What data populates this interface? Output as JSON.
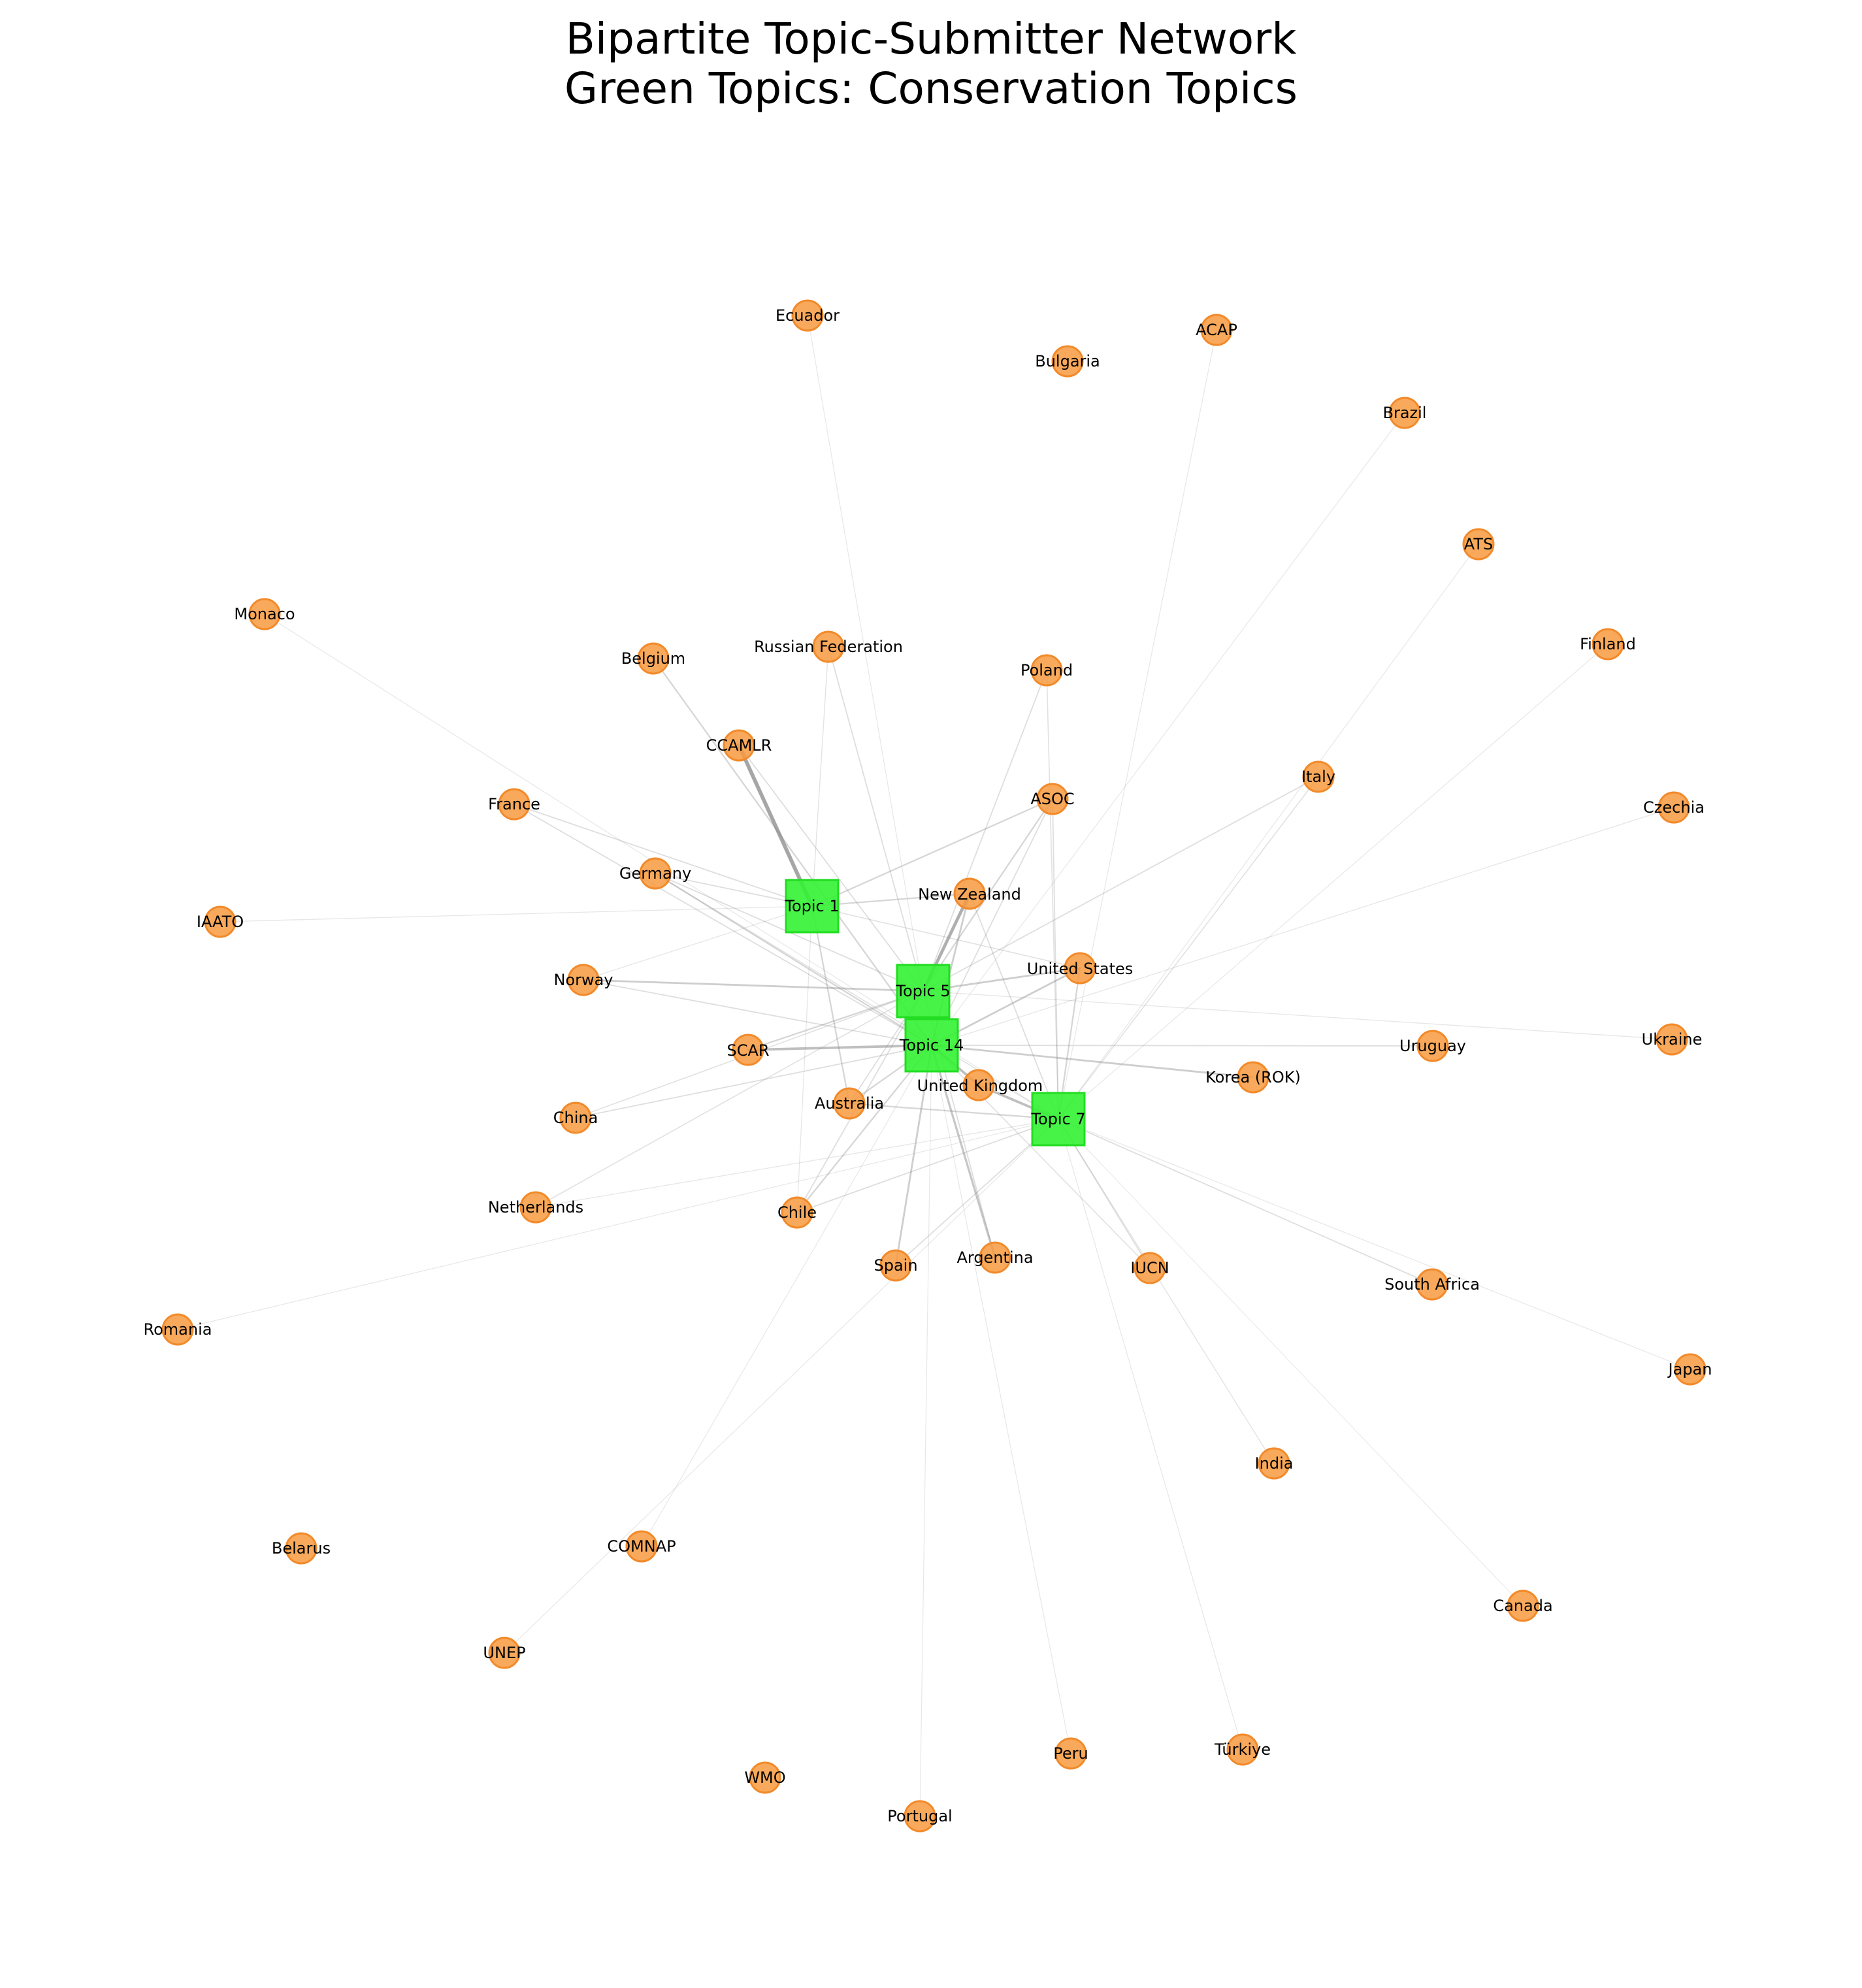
{
  "title": {
    "line1": "Bipartite Topic-Submitter Network",
    "line2": "Green Topics: Conservation Topics"
  },
  "colors": {
    "topic_node": "#33f233",
    "submitter_node": "#f79a3e",
    "edge": "#888888",
    "background": "#ffffff"
  },
  "topics": [
    {
      "id": "Topic 1",
      "label": "Topic 1"
    },
    {
      "id": "Topic 5",
      "label": "Topic 5"
    },
    {
      "id": "Topic 14",
      "label": "Topic 14"
    },
    {
      "id": "Topic 7",
      "label": "Topic 7"
    }
  ],
  "submitters": [
    {
      "id": "Ecuador",
      "label": "Ecuador"
    },
    {
      "id": "ACAP",
      "label": "ACAP"
    },
    {
      "id": "Bulgaria",
      "label": "Bulgaria"
    },
    {
      "id": "Brazil",
      "label": "Brazil"
    },
    {
      "id": "ATS",
      "label": "ATS"
    },
    {
      "id": "Monaco",
      "label": "Monaco"
    },
    {
      "id": "Finland",
      "label": "Finland"
    },
    {
      "id": "Belgium",
      "label": "Belgium"
    },
    {
      "id": "Russian Federation",
      "label": "Russian Federation"
    },
    {
      "id": "Poland",
      "label": "Poland"
    },
    {
      "id": "CCAMLR",
      "label": "CCAMLR"
    },
    {
      "id": "Italy",
      "label": "Italy"
    },
    {
      "id": "ASOC",
      "label": "ASOC"
    },
    {
      "id": "France",
      "label": "France"
    },
    {
      "id": "Czechia",
      "label": "Czechia"
    },
    {
      "id": "Germany",
      "label": "Germany"
    },
    {
      "id": "New Zealand",
      "label": "New Zealand"
    },
    {
      "id": "IAATO",
      "label": "IAATO"
    },
    {
      "id": "United States",
      "label": "United States"
    },
    {
      "id": "Norway",
      "label": "Norway"
    },
    {
      "id": "Uruguay",
      "label": "Uruguay"
    },
    {
      "id": "Ukraine",
      "label": "Ukraine"
    },
    {
      "id": "SCAR",
      "label": "SCAR"
    },
    {
      "id": "Korea (ROK)",
      "label": "Korea (ROK)"
    },
    {
      "id": "United Kingdom",
      "label": "United Kingdom"
    },
    {
      "id": "China",
      "label": "China"
    },
    {
      "id": "Australia",
      "label": "Australia"
    },
    {
      "id": "Netherlands",
      "label": "Netherlands"
    },
    {
      "id": "Chile",
      "label": "Chile"
    },
    {
      "id": "Spain",
      "label": "Spain"
    },
    {
      "id": "Argentina",
      "label": "Argentina"
    },
    {
      "id": "IUCN",
      "label": "IUCN"
    },
    {
      "id": "South Africa",
      "label": "South Africa"
    },
    {
      "id": "Romania",
      "label": "Romania"
    },
    {
      "id": "Japan",
      "label": "Japan"
    },
    {
      "id": "India",
      "label": "India"
    },
    {
      "id": "Belarus",
      "label": "Belarus"
    },
    {
      "id": "COMNAP",
      "label": "COMNAP"
    },
    {
      "id": "Canada",
      "label": "Canada"
    },
    {
      "id": "UNEP",
      "label": "UNEP"
    },
    {
      "id": "Peru",
      "label": "Peru"
    },
    {
      "id": "Türkiye",
      "label": "Türkiye"
    },
    {
      "id": "WMO",
      "label": "WMO"
    },
    {
      "id": "Portugal",
      "label": "Portugal"
    }
  ],
  "edges": [
    {
      "topic": "Topic 1",
      "submitter": "CCAMLR",
      "weight": 5
    },
    {
      "topic": "Topic 1",
      "submitter": "ASOC",
      "weight": 1.5
    },
    {
      "topic": "Topic 1",
      "submitter": "New Zealand",
      "weight": 1.5
    },
    {
      "topic": "Topic 1",
      "submitter": "France",
      "weight": 1
    },
    {
      "topic": "Topic 1",
      "submitter": "Germany",
      "weight": 1
    },
    {
      "topic": "Topic 1",
      "submitter": "Russian Federation",
      "weight": 0.6
    },
    {
      "topic": "Topic 1",
      "submitter": "IAATO",
      "weight": 0.5
    },
    {
      "topic": "Topic 1",
      "submitter": "Australia",
      "weight": 1.5
    },
    {
      "topic": "Topic 1",
      "submitter": "United States",
      "weight": 0.8
    },
    {
      "topic": "Topic 1",
      "submitter": "Chile",
      "weight": 0.5
    },
    {
      "topic": "Topic 1",
      "submitter": "Norway",
      "weight": 0.5
    },
    {
      "topic": "Topic 5",
      "submitter": "New Zealand",
      "weight": 4
    },
    {
      "topic": "Topic 5",
      "submitter": "United States",
      "weight": 2
    },
    {
      "topic": "Topic 5",
      "submitter": "Norway",
      "weight": 2
    },
    {
      "topic": "Topic 5",
      "submitter": "SCAR",
      "weight": 1.5
    },
    {
      "topic": "Topic 5",
      "submitter": "ASOC",
      "weight": 1.5
    },
    {
      "topic": "Topic 5",
      "submitter": "Poland",
      "weight": 1
    },
    {
      "topic": "Topic 5",
      "submitter": "Italy",
      "weight": 1
    },
    {
      "topic": "Topic 5",
      "submitter": "Russian Federation",
      "weight": 1
    },
    {
      "topic": "Topic 5",
      "submitter": "Germany",
      "weight": 1
    },
    {
      "topic": "Topic 5",
      "submitter": "CCAMLR",
      "weight": 1
    },
    {
      "topic": "Topic 5",
      "submitter": "Ukraine",
      "weight": 0.5
    },
    {
      "topic": "Topic 5",
      "submitter": "Ecuador",
      "weight": 0.4
    },
    {
      "topic": "Topic 5",
      "submitter": "Australia",
      "weight": 1
    },
    {
      "topic": "Topic 5",
      "submitter": "China",
      "weight": 0.8
    },
    {
      "topic": "Topic 5",
      "submitter": "Netherlands",
      "weight": 0.8
    },
    {
      "topic": "Topic 5",
      "submitter": "Argentina",
      "weight": 1
    },
    {
      "topic": "Topic 5",
      "submitter": "Chile",
      "weight": 1
    },
    {
      "topic": "Topic 14",
      "submitter": "United Kingdom",
      "weight": 3
    },
    {
      "topic": "Topic 14",
      "submitter": "SCAR",
      "weight": 3
    },
    {
      "topic": "Topic 14",
      "submitter": "Uruguay",
      "weight": 1
    },
    {
      "topic": "Topic 14",
      "submitter": "Korea (ROK)",
      "weight": 2
    },
    {
      "topic": "Topic 14",
      "submitter": "United States",
      "weight": 2
    },
    {
      "topic": "Topic 14",
      "submitter": "New Zealand",
      "weight": 2
    },
    {
      "topic": "Topic 14",
      "submitter": "Germany",
      "weight": 1.5
    },
    {
      "topic": "Topic 14",
      "submitter": "Belgium",
      "weight": 1.5
    },
    {
      "topic": "Topic 14",
      "submitter": "Spain",
      "weight": 2
    },
    {
      "topic": "Topic 14",
      "submitter": "Argentina",
      "weight": 2.5
    },
    {
      "topic": "Topic 14",
      "submitter": "Australia",
      "weight": 1.5
    },
    {
      "topic": "Topic 14",
      "submitter": "Chile",
      "weight": 1.5
    },
    {
      "topic": "Topic 14",
      "submitter": "France",
      "weight": 1
    },
    {
      "topic": "Topic 14",
      "submitter": "China",
      "weight": 1
    },
    {
      "topic": "Topic 14",
      "submitter": "Norway",
      "weight": 1
    },
    {
      "topic": "Topic 14",
      "submitter": "ASOC",
      "weight": 1
    },
    {
      "topic": "Topic 14",
      "submitter": "Portugal",
      "weight": 0.4
    },
    {
      "topic": "Topic 14",
      "submitter": "Peru",
      "weight": 0.4
    },
    {
      "topic": "Topic 14",
      "submitter": "COMNAP",
      "weight": 0.4
    },
    {
      "topic": "Topic 14",
      "submitter": "Czechia",
      "weight": 0.5
    },
    {
      "topic": "Topic 14",
      "submitter": "IUCN",
      "weight": 0.8
    },
    {
      "topic": "Topic 14",
      "submitter": "Brazil",
      "weight": 0.4
    },
    {
      "topic": "Topic 7",
      "submitter": "United Kingdom",
      "weight": 3
    },
    {
      "topic": "Topic 7",
      "submitter": "Australia",
      "weight": 1.5
    },
    {
      "topic": "Topic 7",
      "submitter": "United States",
      "weight": 1.5
    },
    {
      "topic": "Topic 7",
      "submitter": "IUCN",
      "weight": 1
    },
    {
      "topic": "Topic 7",
      "submitter": "South Africa",
      "weight": 1
    },
    {
      "topic": "Topic 7",
      "submitter": "Chile",
      "weight": 1
    },
    {
      "topic": "Topic 7",
      "submitter": "Spain",
      "weight": 1
    },
    {
      "topic": "Topic 7",
      "submitter": "Italy",
      "weight": 0.8
    },
    {
      "topic": "Topic 7",
      "submitter": "India",
      "weight": 0.6
    },
    {
      "topic": "Topic 7",
      "submitter": "Japan",
      "weight": 0.4
    },
    {
      "topic": "Topic 7",
      "submitter": "Türkiye",
      "weight": 0.4
    },
    {
      "topic": "Topic 7",
      "submitter": "UNEP",
      "weight": 0.4
    },
    {
      "topic": "Topic 7",
      "submitter": "Germany",
      "weight": 0.8
    },
    {
      "topic": "Topic 7",
      "submitter": "Netherlands",
      "weight": 0.5
    },
    {
      "topic": "Topic 7",
      "submitter": "ACAP",
      "weight": 0.4
    },
    {
      "topic": "Topic 7",
      "submitter": "Monaco",
      "weight": 0.4
    },
    {
      "topic": "Topic 7",
      "submitter": "Romania",
      "weight": 0.4
    },
    {
      "topic": "Topic 7",
      "submitter": "ATS",
      "weight": 0.4
    },
    {
      "topic": "Topic 7",
      "submitter": "Finland",
      "weight": 0.4
    },
    {
      "topic": "Topic 7",
      "submitter": "Canada",
      "weight": 0.3
    },
    {
      "topic": "Topic 7",
      "submitter": "ASOC",
      "weight": 1
    },
    {
      "topic": "Topic 7",
      "submitter": "New Zealand",
      "weight": 1
    },
    {
      "topic": "Topic 7",
      "submitter": "Poland",
      "weight": 0.8
    }
  ]
}
